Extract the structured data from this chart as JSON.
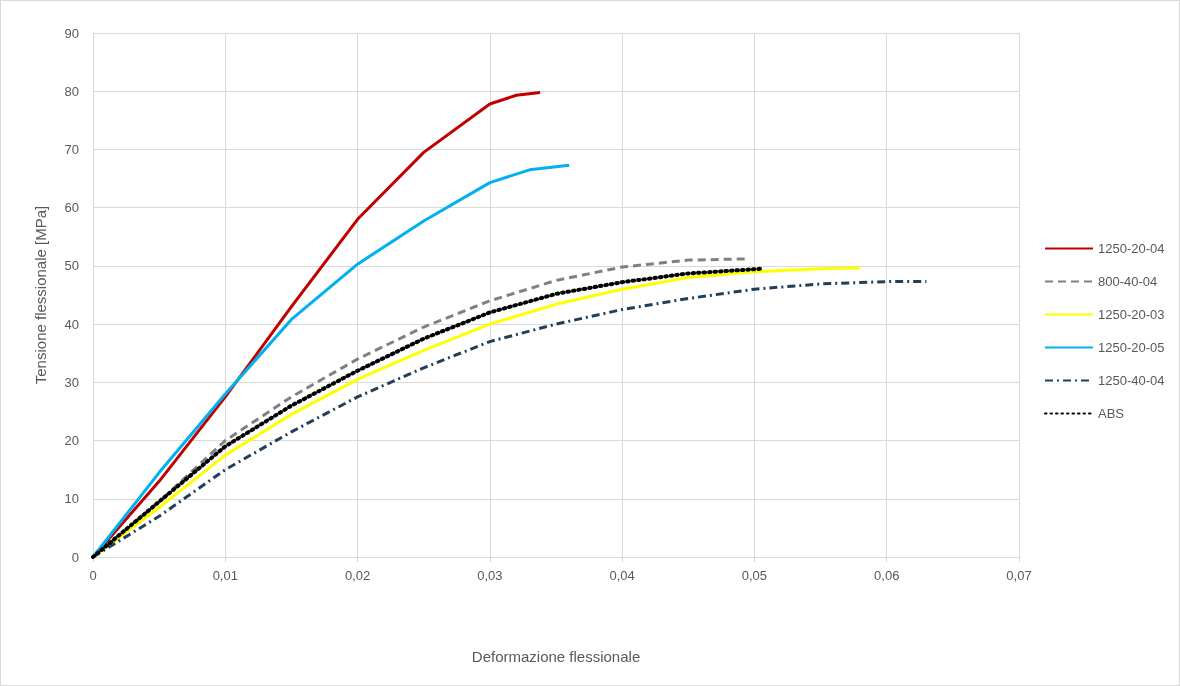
{
  "chart_data": {
    "type": "line",
    "xlabel": "Deformazione flessionale",
    "ylabel": "Tensione flessionale [MPa]",
    "xlim": [
      0,
      0.07
    ],
    "xticks": [
      0,
      {
        "value": 0.01,
        "label": "0,01"
      },
      {
        "value": 0.02,
        "label": "0,02"
      },
      {
        "value": 0.03,
        "label": "0,03"
      },
      {
        "value": 0.04,
        "label": "0,04"
      },
      {
        "value": 0.05,
        "label": "0,05"
      },
      {
        "value": 0.06,
        "label": "0,06"
      },
      {
        "value": 0.07,
        "label": "0,07"
      }
    ],
    "ylim": [
      0,
      90
    ],
    "yticks": [
      0,
      10,
      20,
      30,
      40,
      50,
      60,
      70,
      80,
      90
    ],
    "grid": true,
    "legend": "right",
    "marker": "none",
    "series": [
      {
        "name": "1250-20-04",
        "color": "#c00000",
        "line_style": "solid",
        "x": [
          0,
          0.005,
          0.01,
          0.015,
          0.02,
          0.025,
          0.03,
          0.032,
          0.0338
        ],
        "values": [
          0,
          13,
          27.5,
          43,
          58,
          69.5,
          77.8,
          79.3,
          79.8
        ]
      },
      {
        "name": "800-40-04",
        "color": "#808080",
        "line_style": "dashed",
        "x": [
          0,
          0.005,
          0.01,
          0.015,
          0.02,
          0.025,
          0.03,
          0.035,
          0.04,
          0.045,
          0.0495
        ],
        "values": [
          0,
          9.5,
          20,
          27.5,
          34,
          39.5,
          44,
          47.5,
          49.8,
          51,
          51.2
        ]
      },
      {
        "name": "1250-20-03",
        "color": "#ffff00",
        "line_style": "solid",
        "x": [
          0,
          0.005,
          0.01,
          0.015,
          0.02,
          0.025,
          0.03,
          0.035,
          0.04,
          0.045,
          0.05,
          0.055,
          0.058
        ],
        "values": [
          0,
          8.5,
          17.5,
          24.5,
          30.5,
          35.5,
          40,
          43.4,
          46,
          48,
          49,
          49.5,
          49.7
        ]
      },
      {
        "name": "1250-20-05",
        "color": "#00b0f0",
        "line_style": "solid",
        "x": [
          0,
          0.005,
          0.01,
          0.015,
          0.02,
          0.025,
          0.03,
          0.033,
          0.036
        ],
        "values": [
          0,
          14.5,
          28,
          40.8,
          50.3,
          57.7,
          64.3,
          66.5,
          67.3
        ]
      },
      {
        "name": "1250-40-04",
        "color": "#1f3f5a",
        "line_style": "dashdot",
        "x": [
          0,
          0.005,
          0.01,
          0.015,
          0.02,
          0.025,
          0.03,
          0.035,
          0.04,
          0.045,
          0.05,
          0.055,
          0.06,
          0.063
        ],
        "values": [
          0,
          7,
          15,
          21.5,
          27.5,
          32.5,
          37,
          40,
          42.5,
          44.4,
          46,
          46.9,
          47.3,
          47.3
        ]
      },
      {
        "name": "ABS",
        "color": "#000000",
        "line_style": "dotted",
        "x": [
          0,
          0.005,
          0.01,
          0.015,
          0.02,
          0.025,
          0.03,
          0.035,
          0.04,
          0.045,
          0.0505
        ],
        "values": [
          0,
          9.5,
          19,
          26,
          32,
          37.5,
          42,
          45.2,
          47.2,
          48.7,
          49.5
        ]
      }
    ]
  }
}
